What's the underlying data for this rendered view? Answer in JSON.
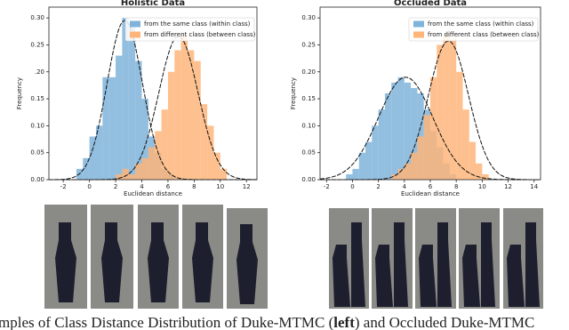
{
  "chart_data": [
    {
      "type": "histogram",
      "title": "Holistic Data",
      "xlabel": "Euclidean distance",
      "ylabel": "Frequency",
      "xlim": [
        -3.1,
        12.8
      ],
      "ylim": [
        0,
        0.32
      ],
      "xticks": [
        -2,
        0,
        2,
        4,
        6,
        8,
        10,
        12
      ],
      "yticks": [
        {
          "value": 0,
          "label": "0.00"
        },
        {
          "value": 0.05,
          "label": "0.05"
        },
        {
          "value": 0.1,
          "label": "0.10"
        },
        {
          "value": 0.15,
          "label": "0.15"
        },
        {
          "value": 0.2,
          "label": ".20"
        },
        {
          "value": 0.25,
          "label": "0.25"
        },
        {
          "value": 0.3,
          "label": "0.30"
        }
      ],
      "legend": "upper right",
      "series": [
        {
          "name": "from the same class (within class)",
          "color": "#7fb3d9",
          "bins": [
            -1,
            -0.5,
            0,
            0.5,
            1,
            1.5,
            2,
            2.5,
            3,
            3.5,
            4,
            4.5,
            5,
            5.5,
            6,
            6.5
          ],
          "values": [
            0.02,
            0.04,
            0.08,
            0.1,
            0.19,
            0.19,
            0.23,
            0.3,
            0.29,
            0.22,
            0.15,
            0.08,
            0.05,
            0.02,
            0.01
          ],
          "fit": {
            "mean": 2.7,
            "std": 1.35
          }
        },
        {
          "name": "from different class (between class)",
          "color": "#fdb57a",
          "bins": [
            2,
            2.5,
            3,
            3.5,
            4,
            4.5,
            5,
            5.5,
            6,
            6.5,
            7,
            7.5,
            8,
            8.5,
            9,
            9.5,
            10,
            10.5
          ],
          "values": [
            0.01,
            0.02,
            0.01,
            0.03,
            0.04,
            0.06,
            0.09,
            0.13,
            0.2,
            0.24,
            0.27,
            0.24,
            0.22,
            0.14,
            0.1,
            0.05,
            0.02
          ],
          "fit": {
            "mean": 6.8,
            "std": 1.5
          }
        }
      ]
    },
    {
      "type": "histogram",
      "title": "Occluded Data",
      "xlabel": "Euclidean distance",
      "ylabel": "Frequency",
      "xlim": [
        -2.5,
        14.5
      ],
      "ylim": [
        0,
        0.32
      ],
      "xticks": [
        -2,
        0,
        2,
        4,
        6,
        8,
        10,
        12,
        14
      ],
      "yticks": [
        {
          "value": 0,
          "label": "0.00"
        },
        {
          "value": 0.05,
          "label": "0.05"
        },
        {
          "value": 0.1,
          "label": "0.10"
        },
        {
          "value": 0.15,
          "label": "0.15"
        },
        {
          "value": 0.2,
          "label": "0.20"
        },
        {
          "value": 0.25,
          "label": "0.25"
        },
        {
          "value": 0.3,
          "label": "0.30"
        }
      ],
      "legend": "upper right",
      "series": [
        {
          "name": "from the same class (within class)",
          "color": "#7fb3d9",
          "bins": [
            -0.5,
            0,
            0.5,
            1,
            1.5,
            2,
            2.5,
            3,
            3.5,
            4,
            4.5,
            5,
            5.5,
            6,
            6.5,
            7,
            7.5,
            8
          ],
          "values": [
            0.01,
            0.02,
            0.05,
            0.07,
            0.1,
            0.13,
            0.16,
            0.18,
            0.19,
            0.18,
            0.17,
            0.16,
            0.13,
            0.09,
            0.06,
            0.03,
            0.01
          ],
          "fit": {
            "mean": 4.1,
            "std": 2.1
          }
        },
        {
          "name": "from different class (between class)",
          "color": "#fdb57a",
          "bins": [
            3,
            3.5,
            4,
            4.5,
            5,
            5.5,
            6,
            6.5,
            7,
            7.5,
            8,
            8.5,
            9,
            9.5,
            10,
            10.5
          ],
          "values": [
            0.01,
            0.02,
            0.03,
            0.05,
            0.08,
            0.12,
            0.19,
            0.25,
            0.27,
            0.26,
            0.2,
            0.13,
            0.07,
            0.03,
            0.01
          ],
          "fit": {
            "mean": 7.4,
            "std": 1.55
          }
        }
      ]
    }
  ],
  "caption": {
    "before": "mples of Class Distance Distribution of Duke-MTMC (",
    "bold": "left",
    "after": ") and Occluded Duke-MTMC"
  }
}
